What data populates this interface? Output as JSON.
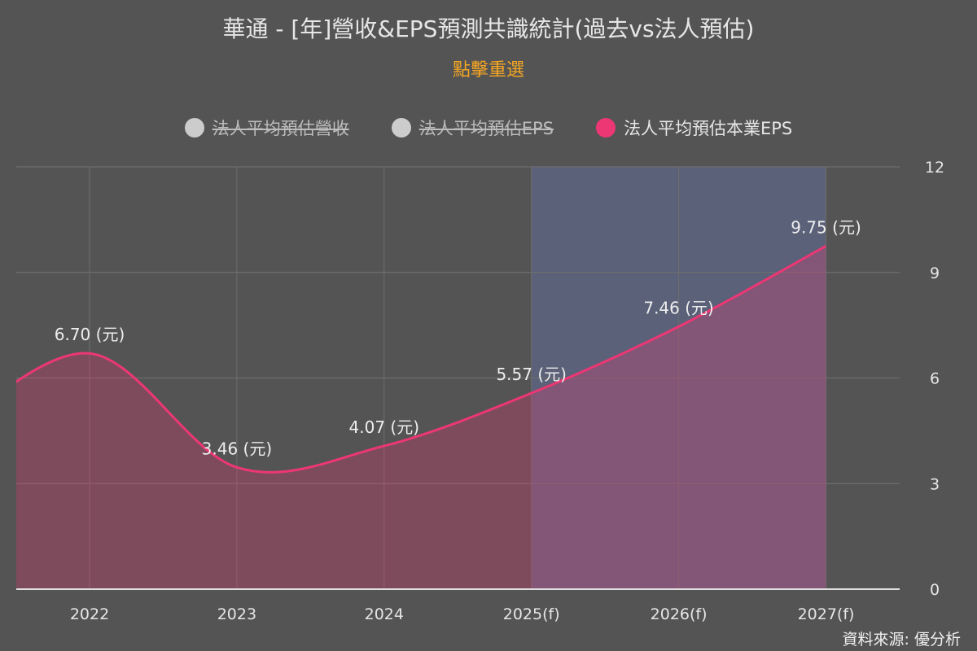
{
  "title": "華通 - [年]營收&EPS預測共識統計(過去vs法人預估)",
  "subtitle": "點擊重選",
  "source": "資料來源: 優分析",
  "legend": [
    {
      "label": "法人平均預估營收",
      "color": "#cccccc",
      "active": false
    },
    {
      "label": "法人平均預估EPS",
      "color": "#cccccc",
      "active": false
    },
    {
      "label": "法人平均預估本業EPS",
      "color": "#ec3774",
      "active": true
    }
  ],
  "chart_data": {
    "type": "area",
    "categories": [
      "2022",
      "2023",
      "2024",
      "2025(f)",
      "2026(f)",
      "2027(f)"
    ],
    "series": [
      {
        "name": "法人平均預估本業EPS",
        "values": [
          6.7,
          3.46,
          4.07,
          5.57,
          7.46,
          9.75
        ],
        "color": "#ec3774"
      }
    ],
    "data_labels": [
      "6.70 (元)",
      "3.46 (元)",
      "4.07 (元)",
      "5.57 (元)",
      "7.46 (元)",
      "9.75 (元)"
    ],
    "y_axis": {
      "position": "right",
      "ylim": [
        0,
        12
      ],
      "ticks": [
        "0",
        "3",
        "6",
        "9",
        "12"
      ]
    },
    "forecast_band": {
      "from": "2025(f)",
      "to": "2027(f)",
      "color": "#5a6178"
    },
    "grid": true,
    "legend_position": "top"
  }
}
